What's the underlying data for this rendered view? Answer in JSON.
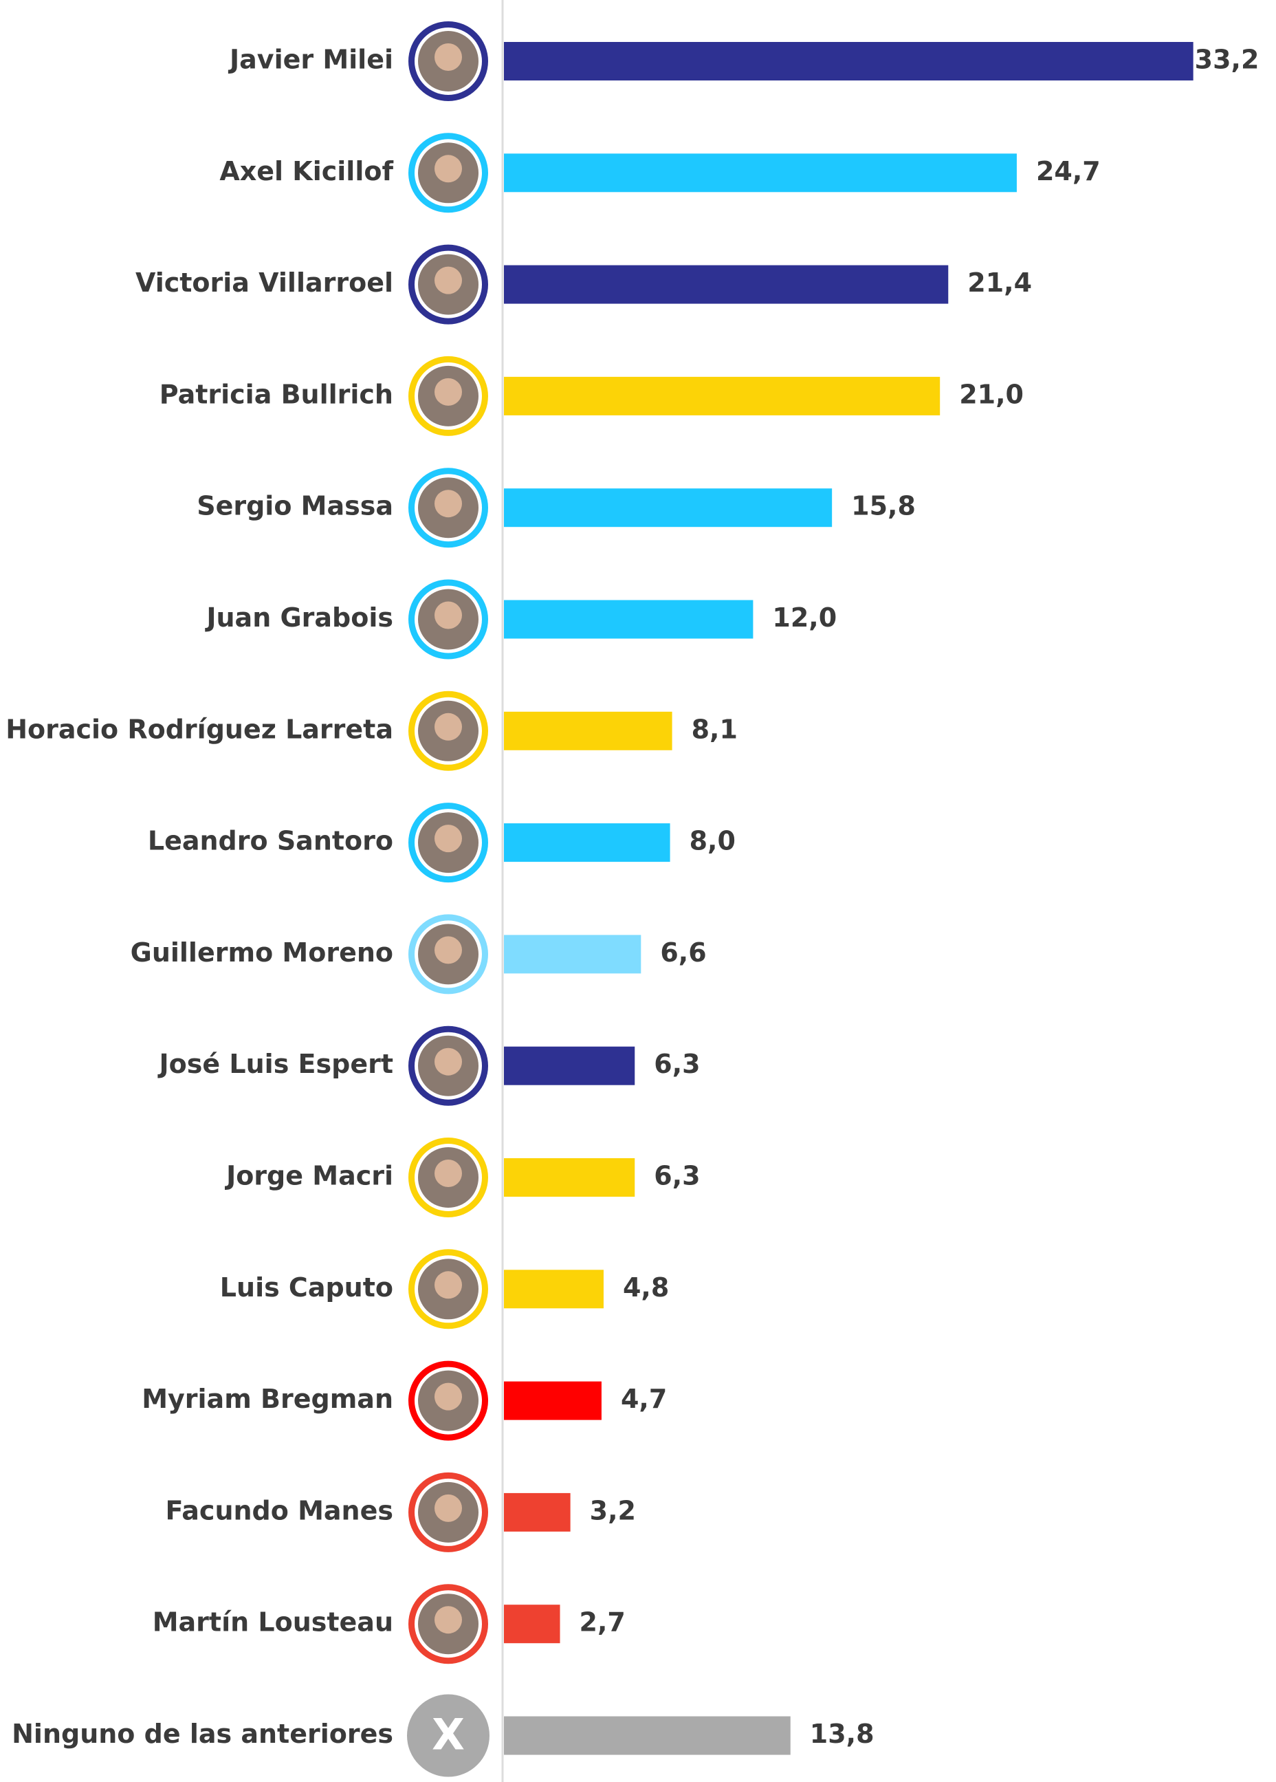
{
  "chart_data": {
    "type": "hbar",
    "categories": [
      "Javier Milei",
      "Axel Kicillof",
      "Victoria Villarroel",
      "Patricia Bullrich",
      "Sergio Massa",
      "Juan Grabois",
      "Horacio Rodríguez Larreta",
      "Leandro Santoro",
      "Guillermo Moreno",
      "José Luis Espert",
      "Jorge Macri",
      "Luis Caputo",
      "Myriam Bregman",
      "Facundo Manes",
      "Martín Lousteau",
      "Ninguno de las anteriores"
    ],
    "values": [
      33.2,
      24.7,
      21.4,
      21.0,
      15.8,
      12.0,
      8.1,
      8.0,
      6.6,
      6.3,
      6.3,
      4.8,
      4.7,
      3.2,
      2.7,
      13.8
    ],
    "value_labels": [
      "33,2",
      "24,7",
      "21,4",
      "21,0",
      "15,8",
      "12,0",
      "8,1",
      "8,0",
      "6,6",
      "6,3",
      "6,3",
      "4,8",
      "4,7",
      "3,2",
      "2,7",
      "13,8"
    ],
    "colors": [
      "#2e3192",
      "#1ec8ff",
      "#2e3192",
      "#fcd307",
      "#1ec8ff",
      "#1ec8ff",
      "#fcd307",
      "#1ec8ff",
      "#7fdcff",
      "#2e3192",
      "#fcd307",
      "#fcd307",
      "#ff0000",
      "#ee4130",
      "#ee4130",
      "#aaaaaa"
    ],
    "none_icon": "X"
  }
}
